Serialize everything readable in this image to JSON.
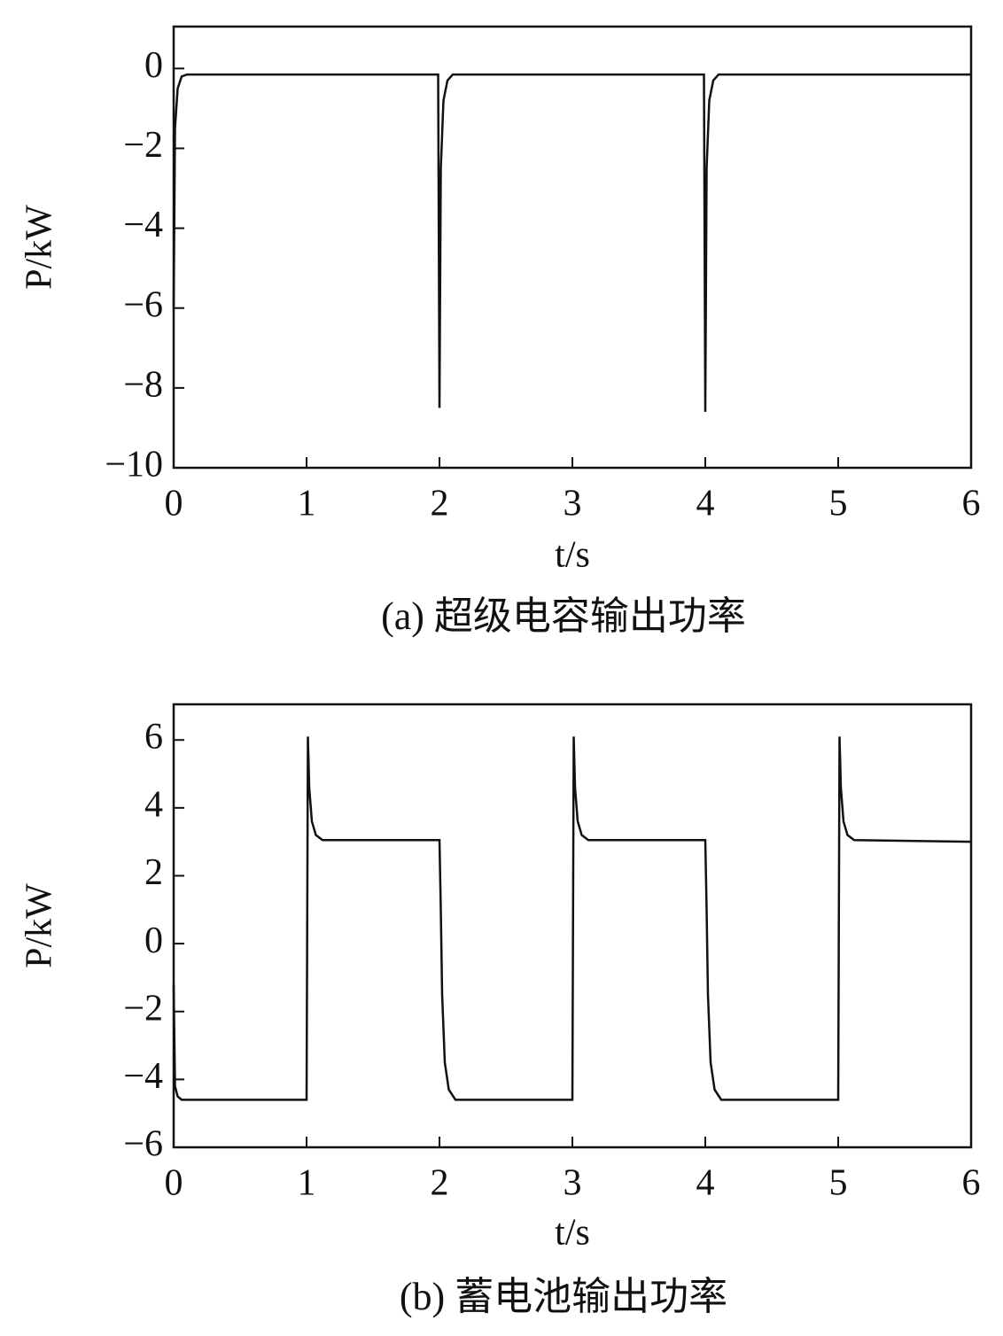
{
  "chart_data": [
    {
      "type": "line",
      "caption": "(a) 超级电容输出功率",
      "xlabel": "t/s",
      "ylabel": "P/kW",
      "color": "#111111",
      "grid": false,
      "x": [
        0,
        0.01,
        0.03,
        0.06,
        0.1,
        1.99,
        2.0,
        2.01,
        2.03,
        2.06,
        2.1,
        3.99,
        4.0,
        4.01,
        4.03,
        4.06,
        4.1,
        6.0
      ],
      "values": [
        -6,
        -1.5,
        -0.5,
        -0.2,
        -0.15,
        -0.15,
        -8.5,
        -2.5,
        -0.8,
        -0.3,
        -0.15,
        -0.15,
        -8.6,
        -2.5,
        -0.8,
        -0.3,
        -0.15,
        -0.15
      ],
      "xlim": [
        0,
        6
      ],
      "xticks": [
        0,
        1,
        2,
        3,
        4,
        5,
        6
      ],
      "ylim": [
        -10,
        1.05
      ],
      "yticks": [
        {
          "value": -10,
          "label": "−10"
        },
        {
          "value": -8,
          "label": "−8"
        },
        {
          "value": -6,
          "label": "−6"
        },
        {
          "value": -4,
          "label": "−4"
        },
        {
          "value": -2,
          "label": "−2"
        },
        0
      ]
    },
    {
      "type": "line",
      "caption": "(b) 蓄电池输出功率",
      "xlabel": "t/s",
      "ylabel": "P/kW",
      "color": "#111111",
      "grid": false,
      "x": [
        0,
        0.01,
        0.03,
        0.06,
        1.0,
        1.01,
        1.02,
        1.04,
        1.07,
        1.12,
        2.0,
        2.01,
        2.02,
        2.04,
        2.07,
        2.12,
        3.0,
        3.01,
        3.02,
        3.04,
        3.07,
        3.12,
        4.0,
        4.01,
        4.02,
        4.04,
        4.07,
        4.12,
        5.0,
        5.01,
        5.02,
        5.04,
        5.07,
        5.12,
        6.0
      ],
      "values": [
        -1.2,
        -4.2,
        -4.5,
        -4.6,
        -4.6,
        6.1,
        4.6,
        3.6,
        3.2,
        3.05,
        3.05,
        1.0,
        -1.5,
        -3.5,
        -4.3,
        -4.6,
        -4.6,
        6.1,
        4.6,
        3.6,
        3.2,
        3.05,
        3.05,
        1.0,
        -1.5,
        -3.5,
        -4.3,
        -4.6,
        -4.6,
        6.1,
        4.6,
        3.6,
        3.2,
        3.05,
        3.0
      ],
      "xlim": [
        0,
        6
      ],
      "xticks": [
        0,
        1,
        2,
        3,
        4,
        5,
        6
      ],
      "ylim": [
        -6,
        7.05
      ],
      "yticks": [
        {
          "value": -6,
          "label": "−6"
        },
        {
          "value": -4,
          "label": "−4"
        },
        {
          "value": -2,
          "label": "−2"
        },
        0,
        2,
        4,
        6
      ]
    }
  ]
}
